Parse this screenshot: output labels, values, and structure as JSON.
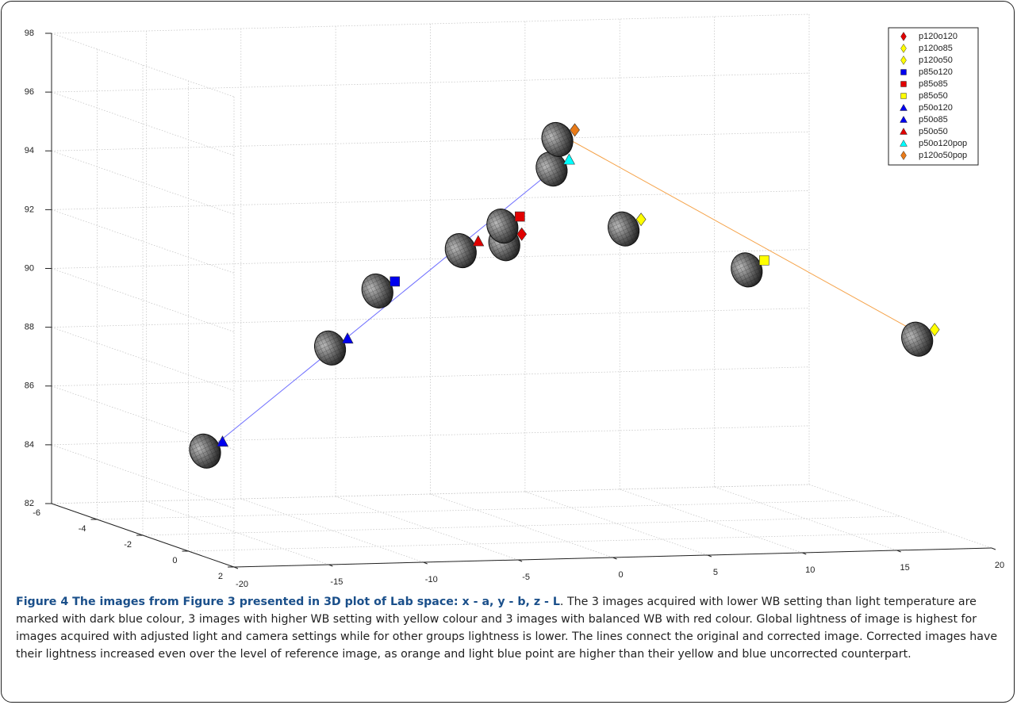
{
  "chart_data": {
    "type": "scatter3d",
    "xlim": [
      -20,
      20
    ],
    "ylim": [
      -6,
      2
    ],
    "zlim": [
      82,
      98
    ],
    "xticks": [
      -20,
      -15,
      -10,
      -5,
      0,
      5,
      10,
      15,
      20
    ],
    "yticks": [
      -6,
      -4,
      -2,
      0,
      2
    ],
    "zticks": [
      82,
      84,
      86,
      88,
      90,
      92,
      94,
      96,
      98
    ],
    "grid": true,
    "legend": "upper right",
    "series": [
      {
        "name": "p120o120",
        "color": "#e00000",
        "marker": "diamond",
        "x": [
          -2.4
        ],
        "y": [
          0
        ],
        "z": [
          92.5
        ]
      },
      {
        "name": "p120o85",
        "color": "#ffff00",
        "marker": "diamond",
        "x": [
          3.9
        ],
        "y": [
          0
        ],
        "z": [
          92.9
        ]
      },
      {
        "name": "p120o50",
        "color": "#ffff00",
        "marker": "diamond",
        "x": [
          19.4
        ],
        "y": [
          0
        ],
        "z": [
          88.9
        ]
      },
      {
        "name": "p85o120",
        "color": "#0000ee",
        "marker": "square",
        "x": [
          -9.1
        ],
        "y": [
          0
        ],
        "z": [
          91.0
        ]
      },
      {
        "name": "p85o85",
        "color": "#e00000",
        "marker": "square",
        "x": [
          -2.5
        ],
        "y": [
          0
        ],
        "z": [
          93.1
        ]
      },
      {
        "name": "p85o50",
        "color": "#ffff00",
        "marker": "square",
        "x": [
          10.4
        ],
        "y": [
          0
        ],
        "z": [
          91.4
        ]
      },
      {
        "name": "p50o120",
        "color": "#0000ee",
        "marker": "triangle",
        "x": [
          -18.2
        ],
        "y": [
          0
        ],
        "z": [
          85.7
        ]
      },
      {
        "name": "p50o85",
        "color": "#0000ee",
        "marker": "triangle",
        "x": [
          -11.6
        ],
        "y": [
          0
        ],
        "z": [
          89.1
        ]
      },
      {
        "name": "p50o50",
        "color": "#e00000",
        "marker": "triangle",
        "x": [
          -4.7
        ],
        "y": [
          0
        ],
        "z": [
          92.3
        ]
      },
      {
        "name": "p50o120pop",
        "color": "#00ffff",
        "marker": "triangle",
        "x": [
          0.1
        ],
        "y": [
          0
        ],
        "z": [
          95.0
        ]
      },
      {
        "name": "p120o50pop",
        "color": "#e87a18",
        "marker": "diamond",
        "x": [
          0.4
        ],
        "y": [
          0
        ],
        "z": [
          96.0
        ]
      }
    ],
    "lines": [
      {
        "points": [
          6,
          9
        ],
        "color": "#6f6fff"
      },
      {
        "points": [
          10,
          2
        ],
        "color": "#f5a34a"
      }
    ]
  },
  "caption": {
    "title": "Figure 4 The images from Figure 3 presented in 3D plot of Lab space: x - a, y - b, z - L",
    "text": ". The 3 images acquired with lower WB setting than light temperature are marked with dark blue colour, 3 images with higher WB setting with yellow colour and 3 images with balanced WB with red colour. Global lightness of image is highest for images acquired with adjusted light and camera settings while for other groups lightness is lower. The lines connect the original and corrected image. Corrected images have their lightness increased even over the level of reference image, as orange and light blue point are higher than their yellow and blue uncorrected counterpart."
  }
}
